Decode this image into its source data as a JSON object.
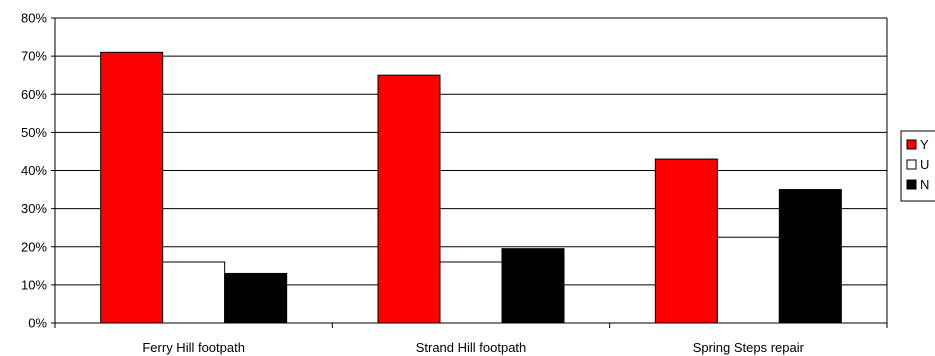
{
  "chart_data": {
    "type": "bar",
    "categories": [
      "Ferry Hill footpath",
      "Strand Hill footpath",
      "Spring Steps repair"
    ],
    "series": [
      {
        "name": "Y",
        "values": [
          71,
          65,
          43
        ],
        "color": "#ff0000"
      },
      {
        "name": "U",
        "values": [
          16,
          16,
          22.5
        ],
        "color": "#ffffff"
      },
      {
        "name": "N",
        "values": [
          13,
          19.5,
          35
        ],
        "color": "#000000"
      }
    ],
    "yticks": [
      "0%",
      "10%",
      "20%",
      "30%",
      "40%",
      "50%",
      "60%",
      "70%",
      "80%"
    ],
    "ylim": [
      0,
      80
    ],
    "grid": true,
    "legend_position": "right"
  }
}
